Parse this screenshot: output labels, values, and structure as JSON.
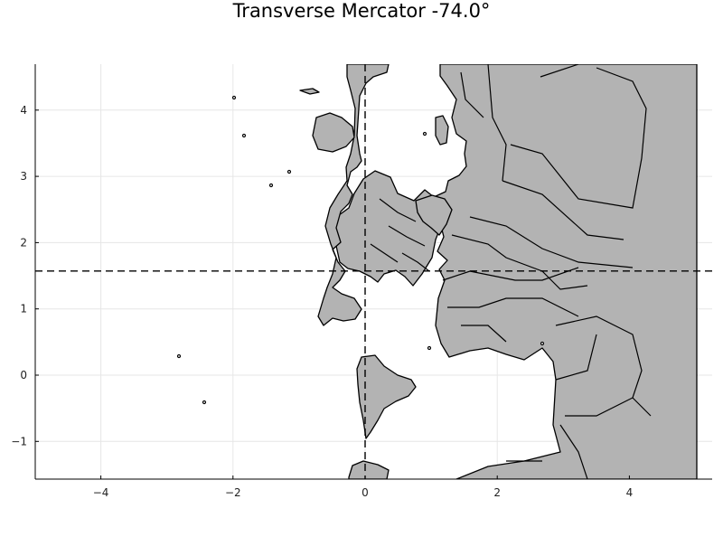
{
  "chart_data": {
    "type": "map",
    "title": "Transverse Mercator -74.0°",
    "projection": "transverse-mercator",
    "central_meridian_deg": -74.0,
    "xlim": [
      -5.0,
      5.3
    ],
    "ylim": [
      -1.57,
      4.72
    ],
    "x_ticks": [
      -4,
      -2,
      0,
      2,
      4
    ],
    "y_ticks": [
      -1,
      0,
      1,
      2,
      3,
      4
    ],
    "x_tick_labels": [
      "−4",
      "−2",
      "0",
      "2",
      "4"
    ],
    "y_tick_labels": [
      "−1",
      "0",
      "1",
      "2",
      "3",
      "4"
    ],
    "reference_lines": [
      {
        "orientation": "horizontal",
        "value": 1.5708,
        "style": "dashed"
      },
      {
        "orientation": "vertical",
        "value": 0.0,
        "style": "dashed"
      }
    ],
    "land_color": "#b3b3b3",
    "border_color": "#000000",
    "grid": true,
    "legend": "none"
  }
}
